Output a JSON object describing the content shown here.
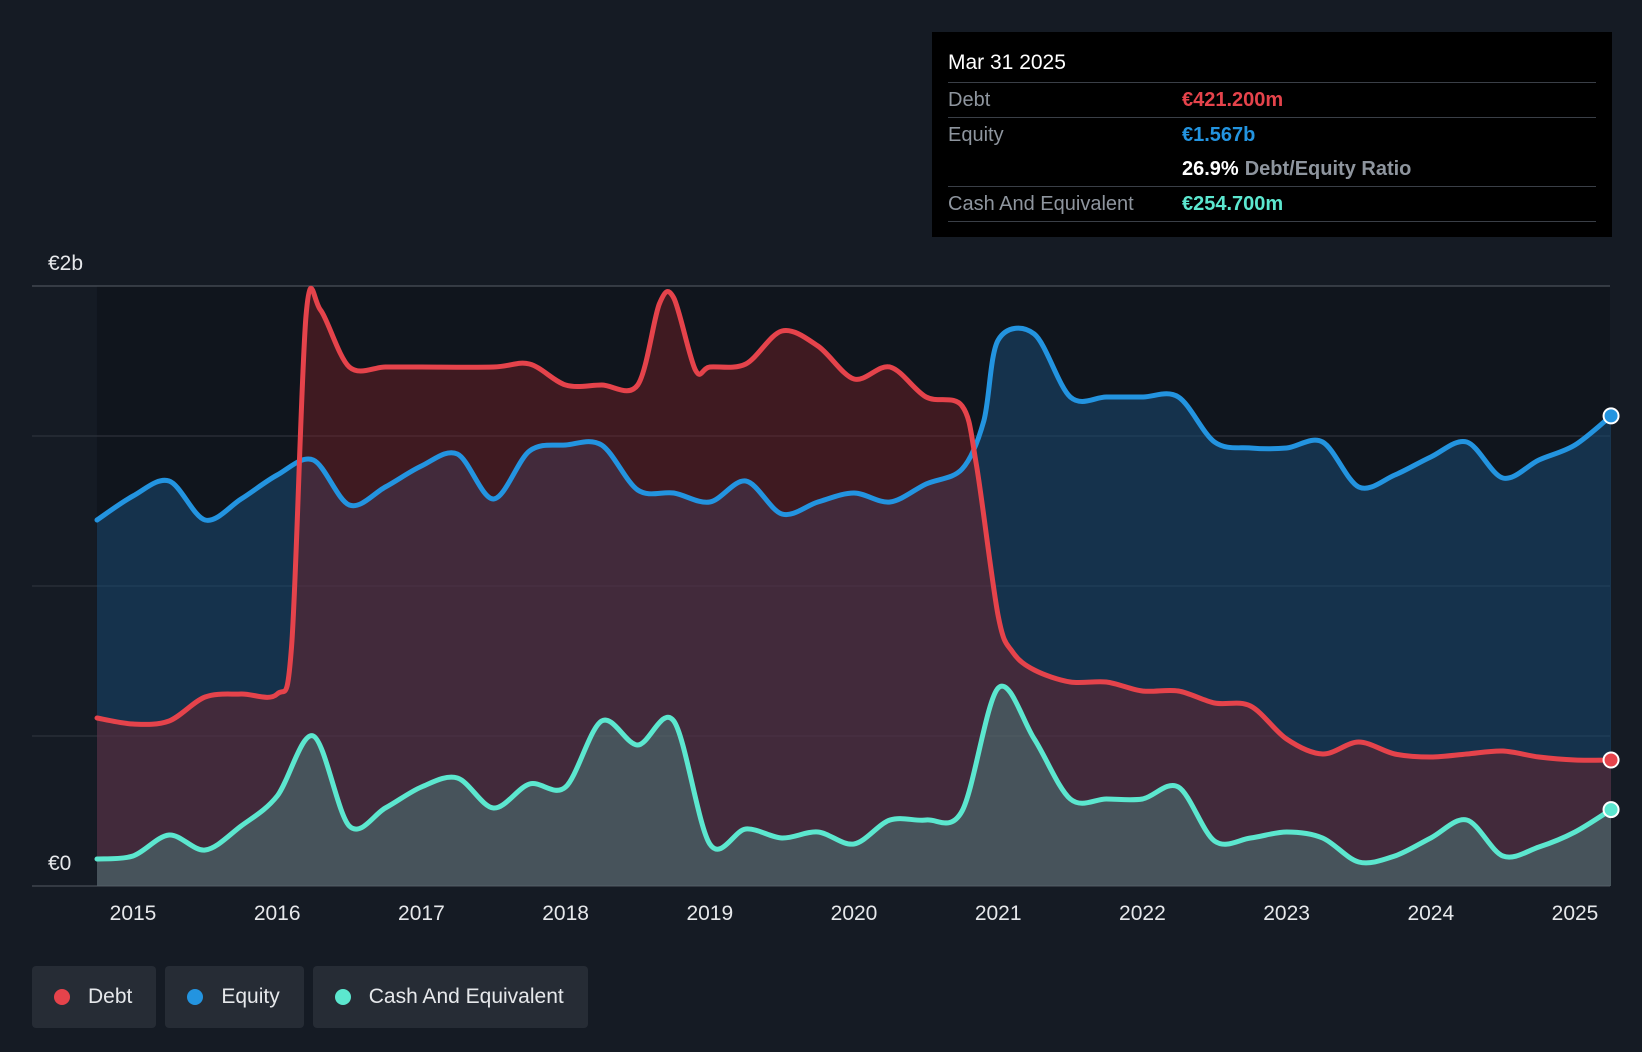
{
  "chart_data": {
    "type": "area",
    "x_label_ticks": [
      "2015",
      "2016",
      "2017",
      "2018",
      "2019",
      "2020",
      "2021",
      "2022",
      "2023",
      "2024",
      "2025"
    ],
    "y_tick_labels": [
      "€0",
      "€2b"
    ],
    "ylim_billions": [
      0,
      2
    ],
    "grid": true,
    "legend_placement": "bottom-left",
    "series": [
      {
        "name": "Debt",
        "color": "#e5434b",
        "points": [
          [
            2014.75,
            0.56
          ],
          [
            2015.0,
            0.54
          ],
          [
            2015.25,
            0.55
          ],
          [
            2015.5,
            0.63
          ],
          [
            2015.75,
            0.64
          ],
          [
            2016.0,
            0.64
          ],
          [
            2016.1,
            0.8
          ],
          [
            2016.2,
            1.9
          ],
          [
            2016.3,
            1.92
          ],
          [
            2016.5,
            1.73
          ],
          [
            2016.75,
            1.73
          ],
          [
            2017.0,
            1.73
          ],
          [
            2017.5,
            1.73
          ],
          [
            2017.75,
            1.74
          ],
          [
            2018.0,
            1.67
          ],
          [
            2018.25,
            1.67
          ],
          [
            2018.5,
            1.67
          ],
          [
            2018.65,
            1.94
          ],
          [
            2018.75,
            1.96
          ],
          [
            2018.9,
            1.72
          ],
          [
            2019.0,
            1.73
          ],
          [
            2019.25,
            1.74
          ],
          [
            2019.5,
            1.85
          ],
          [
            2019.75,
            1.8
          ],
          [
            2020.0,
            1.69
          ],
          [
            2020.25,
            1.73
          ],
          [
            2020.5,
            1.63
          ],
          [
            2020.75,
            1.6
          ],
          [
            2020.85,
            1.4
          ],
          [
            2021.0,
            0.9
          ],
          [
            2021.1,
            0.78
          ],
          [
            2021.25,
            0.72
          ],
          [
            2021.5,
            0.68
          ],
          [
            2021.75,
            0.68
          ],
          [
            2022.0,
            0.65
          ],
          [
            2022.25,
            0.65
          ],
          [
            2022.5,
            0.61
          ],
          [
            2022.75,
            0.6
          ],
          [
            2023.0,
            0.49
          ],
          [
            2023.25,
            0.44
          ],
          [
            2023.5,
            0.48
          ],
          [
            2023.75,
            0.44
          ],
          [
            2024.0,
            0.43
          ],
          [
            2024.25,
            0.44
          ],
          [
            2024.5,
            0.45
          ],
          [
            2024.75,
            0.43
          ],
          [
            2025.0,
            0.42
          ],
          [
            2025.25,
            0.42
          ]
        ]
      },
      {
        "name": "Equity",
        "color": "#2394e0",
        "points": [
          [
            2014.75,
            1.22
          ],
          [
            2015.0,
            1.3
          ],
          [
            2015.25,
            1.35
          ],
          [
            2015.5,
            1.22
          ],
          [
            2015.75,
            1.29
          ],
          [
            2016.0,
            1.37
          ],
          [
            2016.25,
            1.42
          ],
          [
            2016.5,
            1.27
          ],
          [
            2016.75,
            1.33
          ],
          [
            2017.0,
            1.4
          ],
          [
            2017.25,
            1.44
          ],
          [
            2017.5,
            1.29
          ],
          [
            2017.75,
            1.45
          ],
          [
            2018.0,
            1.47
          ],
          [
            2018.25,
            1.47
          ],
          [
            2018.5,
            1.32
          ],
          [
            2018.75,
            1.31
          ],
          [
            2019.0,
            1.28
          ],
          [
            2019.25,
            1.35
          ],
          [
            2019.5,
            1.24
          ],
          [
            2019.75,
            1.28
          ],
          [
            2020.0,
            1.31
          ],
          [
            2020.25,
            1.28
          ],
          [
            2020.5,
            1.34
          ],
          [
            2020.75,
            1.39
          ],
          [
            2020.9,
            1.55
          ],
          [
            2021.0,
            1.82
          ],
          [
            2021.25,
            1.84
          ],
          [
            2021.5,
            1.63
          ],
          [
            2021.75,
            1.63
          ],
          [
            2022.0,
            1.63
          ],
          [
            2022.25,
            1.63
          ],
          [
            2022.5,
            1.48
          ],
          [
            2022.75,
            1.46
          ],
          [
            2023.0,
            1.46
          ],
          [
            2023.25,
            1.48
          ],
          [
            2023.5,
            1.33
          ],
          [
            2023.75,
            1.37
          ],
          [
            2024.0,
            1.43
          ],
          [
            2024.25,
            1.48
          ],
          [
            2024.5,
            1.36
          ],
          [
            2024.75,
            1.42
          ],
          [
            2025.0,
            1.47
          ],
          [
            2025.25,
            1.567
          ]
        ]
      },
      {
        "name": "Cash And Equivalent",
        "color": "#5ce7cf",
        "points": [
          [
            2014.75,
            0.09
          ],
          [
            2015.0,
            0.1
          ],
          [
            2015.25,
            0.17
          ],
          [
            2015.5,
            0.12
          ],
          [
            2015.75,
            0.2
          ],
          [
            2016.0,
            0.3
          ],
          [
            2016.25,
            0.5
          ],
          [
            2016.5,
            0.2
          ],
          [
            2016.75,
            0.26
          ],
          [
            2017.0,
            0.33
          ],
          [
            2017.25,
            0.36
          ],
          [
            2017.5,
            0.26
          ],
          [
            2017.75,
            0.34
          ],
          [
            2018.0,
            0.33
          ],
          [
            2018.25,
            0.55
          ],
          [
            2018.5,
            0.47
          ],
          [
            2018.75,
            0.55
          ],
          [
            2019.0,
            0.14
          ],
          [
            2019.25,
            0.19
          ],
          [
            2019.5,
            0.16
          ],
          [
            2019.75,
            0.18
          ],
          [
            2020.0,
            0.14
          ],
          [
            2020.25,
            0.22
          ],
          [
            2020.5,
            0.22
          ],
          [
            2020.75,
            0.25
          ],
          [
            2021.0,
            0.66
          ],
          [
            2021.25,
            0.49
          ],
          [
            2021.5,
            0.29
          ],
          [
            2021.75,
            0.29
          ],
          [
            2022.0,
            0.29
          ],
          [
            2022.25,
            0.33
          ],
          [
            2022.5,
            0.15
          ],
          [
            2022.75,
            0.16
          ],
          [
            2023.0,
            0.18
          ],
          [
            2023.25,
            0.16
          ],
          [
            2023.5,
            0.08
          ],
          [
            2023.75,
            0.1
          ],
          [
            2024.0,
            0.16
          ],
          [
            2024.25,
            0.22
          ],
          [
            2024.5,
            0.1
          ],
          [
            2024.75,
            0.13
          ],
          [
            2025.0,
            0.18
          ],
          [
            2025.25,
            0.2547
          ]
        ]
      }
    ]
  },
  "tooltip": {
    "date": "Mar 31 2025",
    "debt_label": "Debt",
    "debt_value": "€421.200m",
    "equity_label": "Equity",
    "equity_value": "€1.567b",
    "ratio_value": "26.9%",
    "ratio_label": "Debt/Equity Ratio",
    "cash_label": "Cash And Equivalent",
    "cash_value": "€254.700m"
  },
  "legend": {
    "items": [
      {
        "label": "Debt",
        "color": "#e5434b"
      },
      {
        "label": "Equity",
        "color": "#2394e0"
      },
      {
        "label": "Cash And Equivalent",
        "color": "#5ce7cf"
      }
    ]
  }
}
